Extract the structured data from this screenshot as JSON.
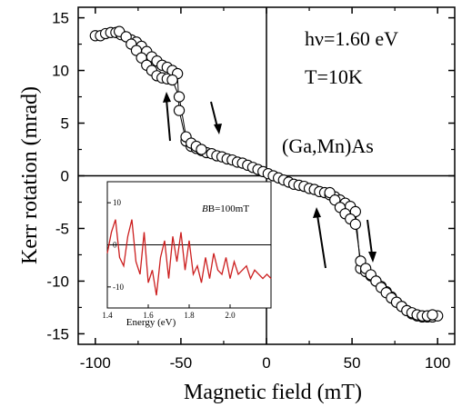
{
  "chart_data": [
    {
      "type": "scatter",
      "title": "",
      "xlabel": "Magnetic field (mT)",
      "ylabel": "Kerr rotation (mrad)",
      "xlim": [
        -110,
        110
      ],
      "ylim": [
        -16,
        16
      ],
      "x_ticks": [
        -100,
        -50,
        0,
        50,
        100
      ],
      "y_ticks": [
        -15,
        -10,
        -5,
        0,
        5,
        10,
        15
      ],
      "x_tick_labels": [
        "-100",
        "-50",
        "0",
        "50",
        "100"
      ],
      "y_tick_labels": [
        "-15",
        "-10",
        "-5",
        "0",
        "5",
        "10",
        "15"
      ],
      "grid": false,
      "annotations": [
        "hν=1.60 eV",
        "T=10K",
        "(Ga,Mn)As"
      ],
      "series": [
        {
          "x": [
            -100,
            -97,
            -94,
            -91,
            -88,
            -85,
            -82,
            -79,
            -76,
            -73,
            -70,
            -67,
            -64,
            -61,
            -58,
            -55,
            -52,
            -51,
            -47,
            -44,
            -41,
            -38,
            -35,
            -32,
            -29,
            -26,
            -23,
            -20,
            -17,
            -14,
            -11,
            -8,
            -5,
            -2,
            1,
            4,
            7,
            10,
            13,
            16,
            19,
            22,
            25,
            28,
            31,
            34,
            37,
            40,
            43,
            46,
            49,
            52,
            55,
            58,
            61,
            64,
            67,
            70,
            73,
            76,
            79,
            82,
            85,
            88,
            91,
            94,
            97,
            100
          ],
          "y": [
            13.3,
            13.3,
            13.5,
            13.6,
            13.6,
            13.4,
            13.2,
            12.9,
            12.7,
            12.3,
            11.8,
            11.3,
            10.9,
            10.5,
            10.3,
            10.0,
            9.7,
            6.2,
            3.3,
            2.8,
            2.6,
            2.4,
            2.2,
            2.1,
            1.9,
            1.8,
            1.6,
            1.5,
            1.3,
            1.2,
            1.0,
            0.8,
            0.6,
            0.4,
            0.2,
            0.0,
            -0.2,
            -0.4,
            -0.6,
            -0.8,
            -0.9,
            -1.0,
            -1.2,
            -1.3,
            -1.5,
            -1.6,
            -1.8,
            -2.0,
            -2.3,
            -2.6,
            -2.9,
            -3.4,
            -8.8,
            -9.1,
            -9.5,
            -10.0,
            -10.5,
            -11.0,
            -11.5,
            -12.0,
            -12.4,
            -12.8,
            -13.1,
            -13.3,
            -13.4,
            -13.4,
            -13.4,
            -13.3
          ]
        },
        {
          "x": [
            -86,
            -82,
            -79,
            -76,
            -73,
            -70,
            -67,
            -64,
            -61,
            -58,
            -55,
            -51,
            -47,
            -44,
            -41,
            -38
          ],
          "y": [
            13.7,
            13.2,
            12.5,
            11.9,
            11.2,
            10.5,
            10.0,
            9.5,
            9.3,
            9.2,
            9.1,
            7.5,
            3.7,
            3.1,
            2.8,
            2.5
          ]
        },
        {
          "x": [
            37,
            40,
            43,
            46,
            49,
            52,
            55,
            58,
            61,
            64,
            67,
            70,
            73,
            76,
            79,
            82,
            85,
            88,
            91,
            94,
            97
          ],
          "y": [
            -1.6,
            -2.3,
            -3.0,
            -3.6,
            -4.1,
            -4.6,
            -8.1,
            -8.8,
            -9.4,
            -10.0,
            -10.6,
            -11.1,
            -11.6,
            -12.0,
            -12.4,
            -12.8,
            -13.0,
            -13.2,
            -13.3,
            -13.3,
            -13.2
          ]
        }
      ]
    },
    {
      "type": "line",
      "title": "",
      "xlabel": "Energy (eV)",
      "ylabel": "",
      "xlim": [
        1.4,
        2.2
      ],
      "ylim": [
        -15,
        15
      ],
      "x_tick_labels": [
        "1.4",
        "1.6",
        "1.8",
        "2.0"
      ],
      "y_tick_labels": [
        "10",
        "0",
        "-10"
      ],
      "annotations": [
        "B=100mT"
      ],
      "series": [
        {
          "color": "#cc1f1f",
          "x": [
            1.4,
            1.42,
            1.44,
            1.46,
            1.48,
            1.5,
            1.52,
            1.54,
            1.56,
            1.58,
            1.6,
            1.62,
            1.64,
            1.66,
            1.68,
            1.7,
            1.72,
            1.74,
            1.76,
            1.78,
            1.8,
            1.82,
            1.84,
            1.86,
            1.88,
            1.9,
            1.92,
            1.94,
            1.96,
            1.98,
            2.0,
            2.02,
            2.04,
            2.06,
            2.08,
            2.1,
            2.12,
            2.14,
            2.16,
            2.18,
            2.2
          ],
          "y": [
            -2,
            3,
            6,
            -3,
            -5,
            2,
            6,
            -4,
            -7,
            3,
            -9,
            -6,
            -12,
            -3,
            1,
            -8,
            2,
            -4,
            3,
            -6,
            1,
            -7,
            -5,
            -9,
            -3,
            -8,
            -2,
            -6,
            -7,
            -3,
            -8,
            -4,
            -7,
            -6,
            -5,
            -8,
            -6,
            -7,
            -8,
            -7,
            -8
          ]
        }
      ]
    }
  ]
}
